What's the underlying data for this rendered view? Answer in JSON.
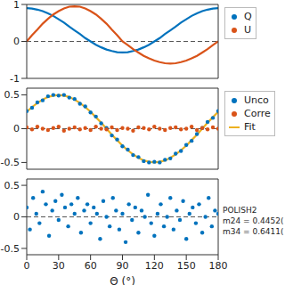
{
  "chart_data": [
    {
      "type": "line",
      "x": [
        0,
        5,
        10,
        15,
        20,
        25,
        30,
        35,
        40,
        45,
        50,
        55,
        60,
        65,
        70,
        75,
        80,
        85,
        90,
        95,
        100,
        105,
        110,
        115,
        120,
        125,
        130,
        135,
        140,
        145,
        150,
        155,
        160,
        165,
        170,
        175,
        180
      ],
      "series": [
        {
          "name": "Q",
          "color": "#0072bd",
          "values": [
            0.9,
            0.89,
            0.86,
            0.82,
            0.76,
            0.69,
            0.6,
            0.51,
            0.4,
            0.3,
            0.2,
            0.09,
            0,
            -0.09,
            -0.16,
            -0.22,
            -0.26,
            -0.29,
            -0.3,
            -0.29,
            -0.26,
            -0.22,
            -0.16,
            -0.09,
            0,
            0.09,
            0.2,
            0.3,
            0.4,
            0.51,
            0.6,
            0.69,
            0.76,
            0.82,
            0.86,
            0.89,
            0.9
          ]
        },
        {
          "name": "U",
          "color": "#d95319",
          "values": [
            0,
            0.17,
            0.32,
            0.48,
            0.61,
            0.73,
            0.82,
            0.89,
            0.94,
            0.95,
            0.94,
            0.89,
            0.82,
            0.73,
            0.61,
            0.48,
            0.32,
            0.17,
            0,
            -0.1,
            -0.21,
            -0.3,
            -0.39,
            -0.46,
            -0.52,
            -0.56,
            -0.59,
            -0.6,
            -0.59,
            -0.56,
            -0.52,
            -0.46,
            -0.39,
            -0.3,
            -0.21,
            -0.1,
            0
          ]
        }
      ],
      "hline": 0,
      "xlim": [
        0,
        180
      ],
      "xticks": [
        0,
        30,
        60,
        90,
        120,
        150,
        180
      ],
      "ylim": [
        -1,
        1
      ],
      "yticks": [
        -1,
        0,
        1
      ],
      "tick_labels": "y",
      "legend": "right"
    },
    {
      "type": "scatter",
      "x": [
        0,
        5,
        10,
        15,
        20,
        25,
        30,
        35,
        40,
        45,
        50,
        55,
        60,
        65,
        70,
        75,
        80,
        85,
        90,
        95,
        100,
        105,
        110,
        115,
        120,
        125,
        130,
        135,
        140,
        145,
        150,
        155,
        160,
        165,
        170,
        175,
        180
      ],
      "series": [
        {
          "name": "Unco",
          "color": "#0072bd",
          "marker": "circle",
          "values": [
            0.26,
            0.31,
            0.39,
            0.42,
            0.48,
            0.5,
            0.49,
            0.5,
            0.46,
            0.44,
            0.37,
            0.33,
            0.24,
            0.18,
            0.08,
            0.01,
            -0.1,
            -0.16,
            -0.26,
            -0.31,
            -0.39,
            -0.42,
            -0.48,
            -0.5,
            -0.49,
            -0.5,
            -0.46,
            -0.44,
            -0.37,
            -0.33,
            -0.24,
            -0.18,
            -0.08,
            0.01,
            0.1,
            0.16,
            0.26
          ]
        },
        {
          "name": "Corre",
          "color": "#d95319",
          "marker": "circle",
          "values": [
            0.02,
            -0.01,
            0.03,
            0,
            -0.02,
            0.01,
            0.03,
            -0.03,
            0,
            0.02,
            -0.01,
            0.01,
            -0.02,
            0.03,
            0,
            -0.01,
            0.02,
            -0.02,
            0.01,
            0,
            -0.03,
            0.02,
            0.01,
            -0.01,
            0.03,
            0,
            -0.02,
            0.01,
            0.02,
            -0.01,
            0,
            0.03,
            -0.02,
            0.01,
            -0.01,
            0.02,
            0
          ]
        },
        {
          "name": "Fit",
          "color": "#edb120",
          "type": "line",
          "values": [
            0.25,
            0.32,
            0.38,
            0.43,
            0.47,
            0.49,
            0.5,
            0.49,
            0.47,
            0.43,
            0.38,
            0.32,
            0.25,
            0.17,
            0.09,
            0,
            -0.09,
            -0.17,
            -0.25,
            -0.32,
            -0.38,
            -0.43,
            -0.47,
            -0.49,
            -0.5,
            -0.49,
            -0.47,
            -0.43,
            -0.38,
            -0.32,
            -0.25,
            -0.17,
            -0.09,
            0,
            0.09,
            0.17,
            0.25
          ]
        }
      ],
      "hline": 0,
      "xlim": [
        0,
        180
      ],
      "xticks": [
        0,
        30,
        60,
        90,
        120,
        150,
        180
      ],
      "ylim": [
        -0.6,
        0.6
      ],
      "yticks": [
        -0.5,
        0,
        0.5
      ],
      "tick_labels": "y",
      "legend": "right"
    },
    {
      "type": "scatter",
      "x_label": "Θ (°)",
      "x": [
        0,
        3,
        6,
        9,
        12,
        15,
        18,
        21,
        24,
        27,
        30,
        33,
        36,
        39,
        42,
        45,
        48,
        51,
        54,
        57,
        60,
        63,
        66,
        69,
        72,
        75,
        78,
        81,
        84,
        87,
        90,
        93,
        96,
        99,
        102,
        105,
        108,
        111,
        114,
        117,
        120,
        123,
        126,
        129,
        132,
        135,
        138,
        141,
        144,
        147,
        150,
        153,
        156,
        159,
        162,
        165,
        168,
        171,
        174,
        177,
        180
      ],
      "series": [
        {
          "color": "#0072bd",
          "marker": "circle",
          "values": [
            0.15,
            -0.2,
            0.3,
            0.05,
            -0.1,
            0.4,
            0.2,
            -0.3,
            0.1,
            0.25,
            -0.05,
            0.35,
            0.15,
            -0.15,
            0.2,
            0.05,
            0.3,
            -0.25,
            0.1,
            0.2,
            -0.1,
            0.15,
            0.05,
            -0.35,
            0.25,
            0,
            -0.15,
            0.3,
            0.1,
            -0.2,
            0.05,
            -0.4,
            0.2,
            -0.05,
            0.15,
            -0.25,
            0.1,
            0,
            0.35,
            -0.1,
            -0.3,
            0.05,
            0.2,
            -0.15,
            0,
            0.3,
            -0.2,
            0.1,
            -0.05,
            0.25,
            -0.35,
            0.05,
            0.15,
            -0.1,
            0.2,
            -0.25,
            0,
            0.3,
            -0.15,
            0.1,
            0.05
          ]
        }
      ],
      "hline": 0,
      "annotations": [
        "POLISH2",
        "m24 = 0.4452(",
        "m34 = 0.6411("
      ],
      "xlim": [
        0,
        180
      ],
      "xticks": [
        0,
        30,
        60,
        90,
        120,
        150,
        180
      ],
      "ylim": [
        -0.6,
        0.6
      ],
      "yticks": [
        -0.5,
        0,
        0.5
      ]
    }
  ]
}
